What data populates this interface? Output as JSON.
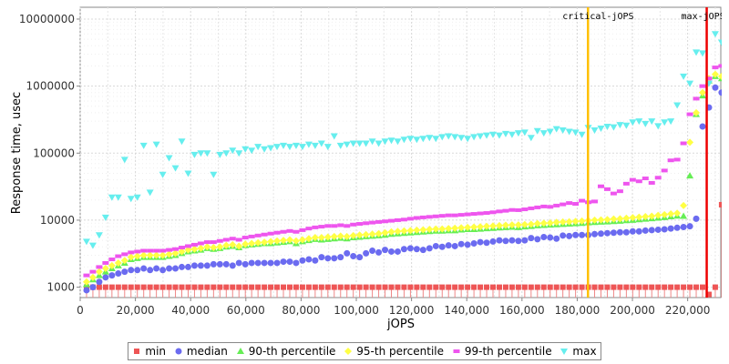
{
  "chart_data": {
    "type": "scatter",
    "title": "",
    "xlabel": "jOPS",
    "ylabel": "Response time, usec",
    "x_scale": "linear",
    "y_scale": "log",
    "xlim": [
      0,
      232000
    ],
    "ylim": [
      700,
      15000000
    ],
    "grid": true,
    "legend_position": "bottom",
    "x_ticks": [
      "0",
      "20,000",
      "40,000",
      "60,000",
      "80,000",
      "100,000",
      "120,000",
      "140,000",
      "160,000",
      "180,000",
      "200,000",
      "220,000"
    ],
    "x_tick_values": [
      0,
      20000,
      40000,
      60000,
      80000,
      100000,
      120000,
      140000,
      160000,
      180000,
      200000,
      220000
    ],
    "y_ticks": [
      "1000",
      "10000",
      "100000",
      "1000000",
      "10000000"
    ],
    "y_tick_values": [
      1000,
      10000,
      100000,
      1000000,
      10000000
    ],
    "annotations": [
      {
        "label": "critical-jOPS",
        "x": 183900,
        "color": "#ffc000"
      },
      {
        "label": "max-jOPS",
        "x": 226900,
        "color": "#ee0000"
      }
    ],
    "series": [
      {
        "name": "min",
        "color": "#ee5555",
        "marker": "square"
      },
      {
        "name": "median",
        "color": "#6b6bf0",
        "marker": "circle"
      },
      {
        "name": "90-th percentile",
        "color": "#66ee55",
        "marker": "triangle-up"
      },
      {
        "name": "95-th percentile",
        "color": "#ffff44",
        "marker": "diamond"
      },
      {
        "name": "99-th percentile",
        "color": "#ee55ee",
        "marker": "rect"
      },
      {
        "name": "max",
        "color": "#66eeee",
        "marker": "triangle-down"
      }
    ],
    "x": [
      2300,
      4600,
      6900,
      9200,
      11500,
      13800,
      16100,
      18400,
      20700,
      23000,
      25300,
      27600,
      29900,
      32200,
      34500,
      36800,
      39100,
      41400,
      43700,
      46000,
      48300,
      50600,
      52900,
      55200,
      57500,
      59800,
      62100,
      64400,
      66700,
      69000,
      71300,
      73600,
      75900,
      78200,
      80500,
      82800,
      85100,
      87400,
      89700,
      92000,
      94300,
      96600,
      98900,
      101200,
      103500,
      105800,
      108100,
      110400,
      112700,
      115000,
      117300,
      119600,
      121900,
      124200,
      126500,
      128800,
      131100,
      133400,
      135700,
      138000,
      140300,
      142600,
      144900,
      147200,
      149500,
      151800,
      154100,
      156400,
      158700,
      161000,
      163300,
      165600,
      167900,
      170200,
      172500,
      174800,
      177100,
      179400,
      181700,
      184000,
      186300,
      188600,
      190900,
      193200,
      195500,
      197800,
      200100,
      202400,
      204700,
      207000,
      209300,
      211600,
      213900,
      216200,
      218500,
      220800,
      223100,
      225400,
      227700,
      230000,
      232300
    ],
    "min": [
      1000,
      1000,
      1000,
      1000,
      1000,
      1000,
      1000,
      1000,
      1000,
      1000,
      1000,
      1000,
      1000,
      1000,
      1000,
      1000,
      1000,
      1000,
      1000,
      1000,
      1000,
      1000,
      1000,
      1000,
      1000,
      1000,
      1000,
      1000,
      1000,
      1000,
      1000,
      1000,
      1000,
      1000,
      1000,
      1000,
      1000,
      1000,
      1000,
      1000,
      1000,
      1000,
      1000,
      1000,
      1000,
      1000,
      1000,
      1000,
      1000,
      1000,
      1000,
      1000,
      1000,
      1000,
      1000,
      1000,
      1000,
      1000,
      1000,
      1000,
      1000,
      1000,
      1000,
      1000,
      1000,
      1000,
      1000,
      1000,
      1000,
      1000,
      1000,
      1000,
      1000,
      1000,
      1000,
      1000,
      1000,
      1000,
      1000,
      1000,
      1000,
      1000,
      1000,
      1000,
      1000,
      1000,
      1000,
      1000,
      1000,
      1000,
      1000,
      1000,
      1000,
      1000,
      1000,
      1000,
      1000,
      1000,
      780,
      1000,
      17000
    ],
    "median": [
      900,
      1000,
      1200,
      1400,
      1500,
      1600,
      1700,
      1800,
      1800,
      1900,
      1800,
      1900,
      1800,
      1900,
      1900,
      2000,
      2000,
      2100,
      2100,
      2100,
      2200,
      2200,
      2200,
      2100,
      2300,
      2200,
      2300,
      2300,
      2300,
      2300,
      2300,
      2400,
      2400,
      2300,
      2500,
      2600,
      2500,
      2800,
      2700,
      2700,
      2800,
      3200,
      2900,
      2800,
      3200,
      3500,
      3300,
      3600,
      3400,
      3400,
      3700,
      3800,
      3700,
      3600,
      3800,
      4100,
      4000,
      4200,
      4100,
      4400,
      4300,
      4500,
      4700,
      4600,
      4800,
      5000,
      4900,
      5000,
      4900,
      5000,
      5400,
      5200,
      5600,
      5500,
      5300,
      5900,
      5800,
      6000,
      6000,
      6000,
      6200,
      6300,
      6400,
      6500,
      6600,
      6600,
      6800,
      6800,
      7000,
      7100,
      7200,
      7300,
      7500,
      7700,
      7900,
      8100,
      10500,
      250000,
      480000,
      950000,
      800000
    ],
    "p90": [
      1100,
      1300,
      1500,
      1700,
      1900,
      2100,
      2300,
      2600,
      2700,
      2800,
      2800,
      2800,
      2800,
      2900,
      3000,
      3200,
      3400,
      3500,
      3600,
      3800,
      3700,
      3800,
      4000,
      4100,
      3900,
      4200,
      4300,
      4400,
      4500,
      4500,
      4600,
      4700,
      4800,
      4500,
      4800,
      5000,
      5200,
      5100,
      5200,
      5300,
      5400,
      5300,
      5500,
      5600,
      5700,
      5800,
      5900,
      6000,
      6200,
      6300,
      6400,
      6500,
      6600,
      6700,
      6800,
      6900,
      6900,
      7000,
      7000,
      7200,
      7300,
      7300,
      7400,
      7500,
      7600,
      7700,
      7800,
      7900,
      7800,
      8000,
      8100,
      8300,
      8400,
      8500,
      8600,
      8700,
      8800,
      8900,
      9000,
      9200,
      9300,
      9400,
      9500,
      9600,
      9700,
      9900,
      10000,
      10200,
      10400,
      10600,
      10800,
      11000,
      11300,
      11600,
      11500,
      46000,
      380000,
      720000,
      1200000,
      1400000,
      1300000
    ],
    "p95": [
      1200,
      1400,
      1700,
      1900,
      2100,
      2300,
      2500,
      2800,
      2900,
      3000,
      3000,
      3000,
      3000,
      3100,
      3200,
      3400,
      3600,
      3700,
      3800,
      4000,
      3900,
      4000,
      4200,
      4300,
      4100,
      4400,
      4500,
      4600,
      4700,
      4800,
      4900,
      5000,
      5100,
      4900,
      5100,
      5300,
      5500,
      5500,
      5600,
      5700,
      5800,
      5700,
      5900,
      6000,
      6100,
      6200,
      6300,
      6500,
      6700,
      6800,
      6900,
      7000,
      7100,
      7200,
      7300,
      7400,
      7400,
      7500,
      7600,
      7700,
      7800,
      7900,
      8000,
      8100,
      8200,
      8300,
      8400,
      8500,
      8500,
      8600,
      8700,
      8900,
      9000,
      9100,
      9300,
      9400,
      9500,
      9600,
      9700,
      9900,
      10000,
      10100,
      10200,
      10400,
      10500,
      10700,
      10900,
      11100,
      11300,
      11500,
      11800,
      12100,
      12400,
      12700,
      16500,
      145000,
      400000,
      800000,
      1300000,
      1500000,
      1400000
    ],
    "p99": [
      1500,
      1700,
      2000,
      2300,
      2600,
      2900,
      3100,
      3300,
      3400,
      3500,
      3500,
      3500,
      3500,
      3600,
      3700,
      3900,
      4100,
      4300,
      4500,
      4700,
      4700,
      4900,
      5100,
      5300,
      5100,
      5500,
      5700,
      5900,
      6100,
      6300,
      6500,
      6700,
      6900,
      6700,
      7100,
      7500,
      7800,
      8000,
      8200,
      8200,
      8400,
      8200,
      8600,
      8800,
      9000,
      9200,
      9400,
      9600,
      9800,
      10000,
      10200,
      10500,
      10800,
      11000,
      11200,
      11400,
      11600,
      11800,
      11800,
      12000,
      12200,
      12400,
      12600,
      12800,
      13100,
      13500,
      13800,
      14200,
      14100,
      14500,
      15000,
      15500,
      16000,
      15800,
      16500,
      17200,
      18000,
      17500,
      19500,
      18500,
      19000,
      32000,
      29000,
      25000,
      27000,
      35000,
      40000,
      38000,
      42000,
      36000,
      43000,
      55000,
      78000,
      80000,
      140000,
      380000,
      650000,
      1000000,
      1300000,
      1900000,
      2000000
    ],
    "max": [
      4800,
      4200,
      6000,
      11000,
      22000,
      22000,
      80000,
      21000,
      22000,
      130000,
      26000,
      135000,
      48000,
      85000,
      60000,
      150000,
      50000,
      95000,
      100000,
      100000,
      48000,
      95000,
      100000,
      110000,
      100000,
      115000,
      110000,
      125000,
      115000,
      120000,
      125000,
      130000,
      125000,
      130000,
      125000,
      135000,
      130000,
      140000,
      125000,
      180000,
      130000,
      135000,
      140000,
      140000,
      140000,
      150000,
      140000,
      150000,
      155000,
      150000,
      160000,
      165000,
      160000,
      165000,
      170000,
      165000,
      175000,
      180000,
      175000,
      170000,
      165000,
      175000,
      180000,
      185000,
      190000,
      185000,
      195000,
      190000,
      200000,
      205000,
      170000,
      215000,
      200000,
      210000,
      230000,
      220000,
      210000,
      205000,
      190000,
      240000,
      220000,
      235000,
      250000,
      245000,
      265000,
      260000,
      290000,
      300000,
      275000,
      300000,
      255000,
      290000,
      300000,
      520000,
      1400000,
      1100000,
      3200000,
      3100000,
      1100000,
      6000000,
      4500000
    ]
  }
}
